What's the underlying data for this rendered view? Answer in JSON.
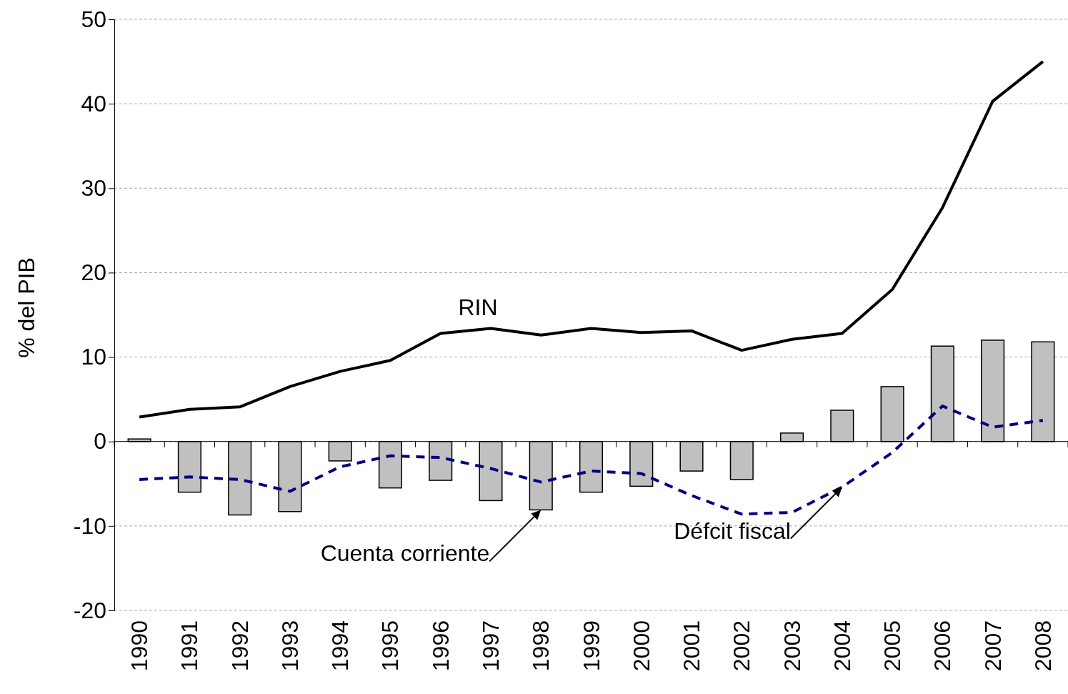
{
  "chart_data": {
    "type": "bar",
    "ylabel": "% del PIB",
    "categories": [
      "1990",
      "1991",
      "1992",
      "1993",
      "1994",
      "1995",
      "1996",
      "1997",
      "1998",
      "1999",
      "2000",
      "2001",
      "2002",
      "2003",
      "2004",
      "2005",
      "2006",
      "2007",
      "2008"
    ],
    "series": [
      {
        "color": "#c0c0c0",
        "values": [
          0.3,
          -6.0,
          -8.7,
          -8.3,
          -2.3,
          -5.5,
          -4.6,
          -7.0,
          -8.1,
          -6.0,
          -5.3,
          -3.5,
          -4.5,
          1.0,
          3.7,
          6.5,
          11.3,
          12.0,
          11.8
        ]
      },
      {
        "type": "line",
        "name": "RIN",
        "color": "#000000",
        "line_style": "solid",
        "values": [
          2.9,
          3.8,
          4.1,
          6.5,
          8.3,
          9.6,
          12.8,
          13.4,
          12.6,
          13.4,
          12.9,
          13.1,
          10.8,
          12.1,
          12.8,
          18.0,
          27.7,
          40.3,
          45.0
        ]
      },
      {
        "type": "line",
        "color": "#000080",
        "line_style": "dashed",
        "values": [
          -4.5,
          -4.2,
          -4.5,
          -5.9,
          -3.0,
          -1.7,
          -1.9,
          -3.2,
          -4.8,
          -3.5,
          -3.8,
          -6.4,
          -8.6,
          -8.4,
          -5.4,
          -1.3,
          4.2,
          1.7,
          2.5
        ]
      }
    ],
    "ylim": [
      -20,
      50
    ],
    "yticks": [
      -20,
      -10,
      0,
      10,
      20,
      30,
      40,
      50
    ],
    "grid": "y",
    "annotations": [
      {
        "text": "Cuenta corriente",
        "x": "1998",
        "y": -8.1
      },
      {
        "text": "Défcit fiscal",
        "x": "2004",
        "y": -5.4
      }
    ]
  }
}
